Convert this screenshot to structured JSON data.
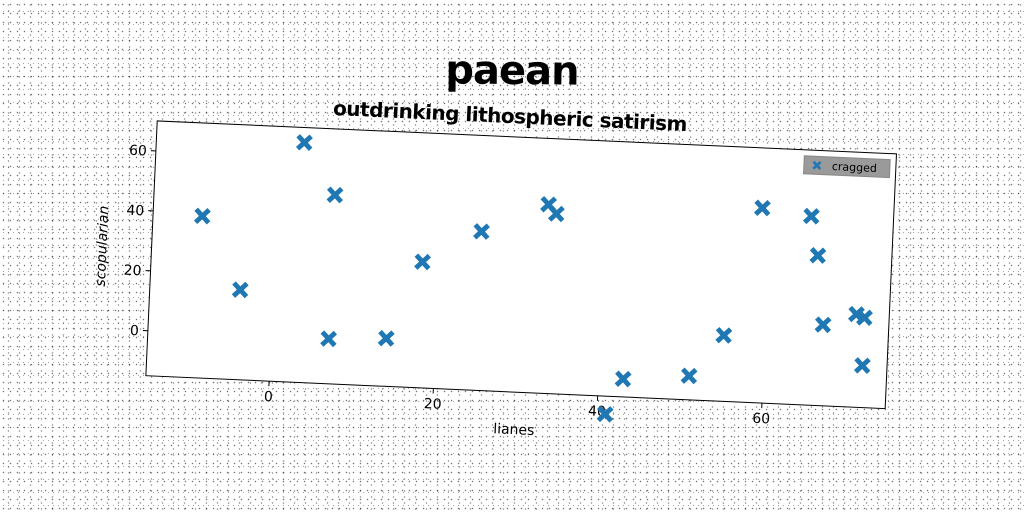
{
  "chart_data": {
    "type": "scatter",
    "title": "paean",
    "subtitle": "outdrinking lithospheric satirism",
    "xlabel": "lianes",
    "ylabel": "scopularian",
    "xlim": [
      -15,
      75
    ],
    "ylim": [
      -15,
      70
    ],
    "xticks": [
      0,
      20,
      40,
      60
    ],
    "yticks": [
      0,
      20,
      40,
      60
    ],
    "grid": false,
    "legend_position": "top-right",
    "series": [
      {
        "name": "cragged",
        "color": "#1f77b4",
        "marker": "X",
        "points": [
          {
            "x": -9,
            "y": 39
          },
          {
            "x": -4,
            "y": 15
          },
          {
            "x": 3,
            "y": 65
          },
          {
            "x": 7,
            "y": 48
          },
          {
            "x": 7,
            "y": 0
          },
          {
            "x": 14,
            "y": 1
          },
          {
            "x": 18,
            "y": 27
          },
          {
            "x": 25,
            "y": 38
          },
          {
            "x": 33,
            "y": 48
          },
          {
            "x": 34,
            "y": 45
          },
          {
            "x": 41,
            "y": -21
          },
          {
            "x": 43,
            "y": -9
          },
          {
            "x": 51,
            "y": -7
          },
          {
            "x": 55,
            "y": 7
          },
          {
            "x": 59,
            "y": 50
          },
          {
            "x": 65,
            "y": 48
          },
          {
            "x": 66,
            "y": 35
          },
          {
            "x": 67,
            "y": 12
          },
          {
            "x": 71,
            "y": 16
          },
          {
            "x": 72,
            "y": 15
          },
          {
            "x": 72,
            "y": -1
          }
        ]
      }
    ]
  }
}
